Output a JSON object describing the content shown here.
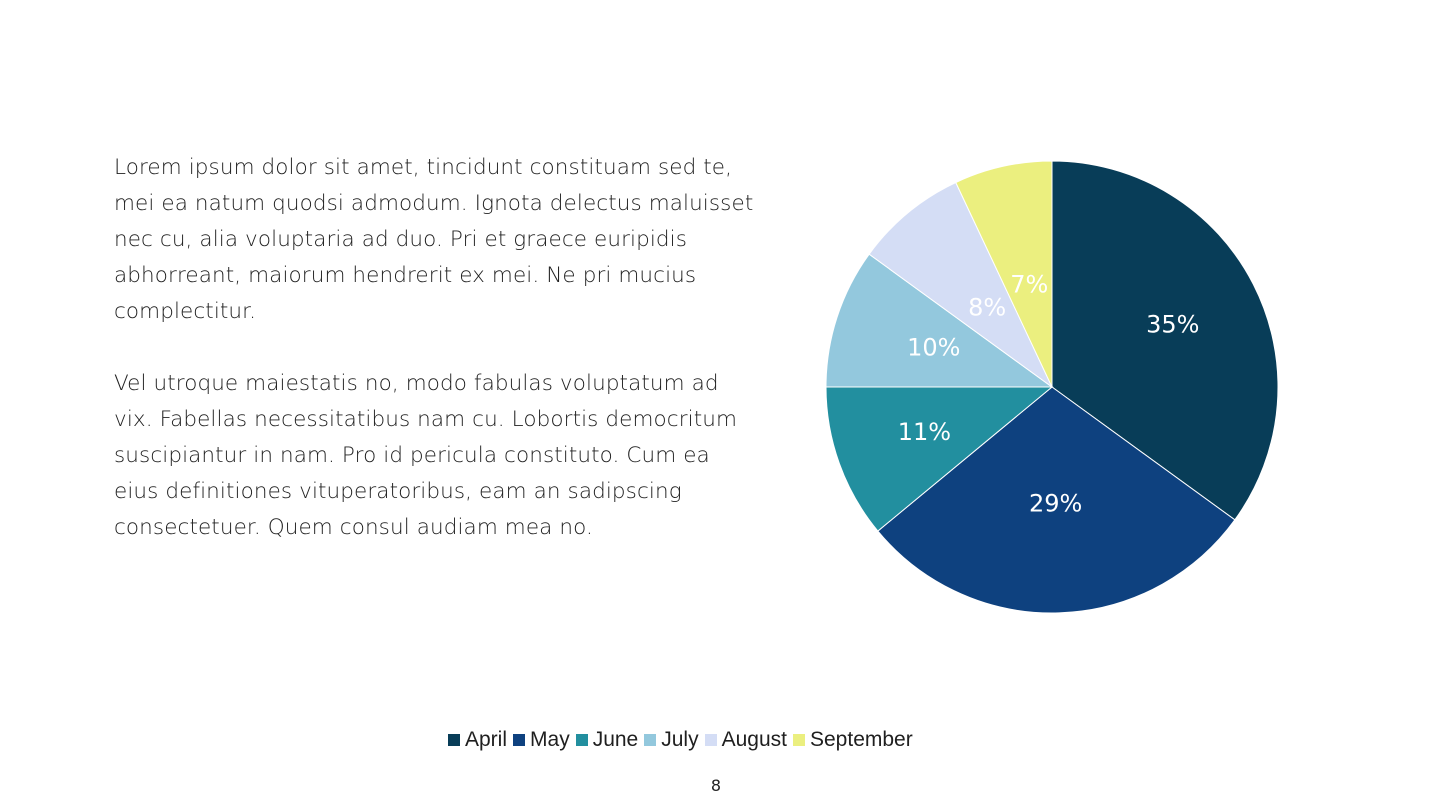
{
  "body_text": {
    "paragraph_1": "Lorem ipsum dolor sit amet, tincidunt constituam sed te, mei ea natum quodsi admodum. Ignota delectus maluisset nec cu, alia voluptaria ad duo. Pri et graece euripidis abhorreant, maiorum hendrerit ex mei. Ne pri mucius complectitur.",
    "paragraph_2": "Vel utroque maiestatis no, modo fabulas voluptatum ad vix. Fabellas necessitatibus nam cu. Lobortis democritum suscipiantur in nam. Pro id pericula constituto. Cum ea eius definitiones vituperatoribus, eam an sadipscing consectetuer. Quem consul audiam mea no."
  },
  "chart_data": {
    "type": "pie",
    "categories": [
      "April",
      "May",
      "June",
      "July",
      "August",
      "September"
    ],
    "values": [
      35,
      29,
      11,
      10,
      8,
      7
    ],
    "labels": [
      "35%",
      "29%",
      "11%",
      "10%",
      "8%",
      "7%"
    ],
    "colors": [
      "#083d58",
      "#0e417f",
      "#228f9f",
      "#93c8dd",
      "#d4ddf5",
      "#ebef7f"
    ],
    "label_colors": [
      "#ffffff",
      "#ffffff",
      "#ffffff",
      "#ffffff",
      "#ffffff",
      "#ffffff"
    ],
    "start": "12 o'clock",
    "direction": "clockwise",
    "legend_position": "bottom"
  },
  "legend": {
    "items": [
      {
        "label": "April",
        "color": "#083d58"
      },
      {
        "label": "May",
        "color": "#0e417f"
      },
      {
        "label": "June",
        "color": "#228f9f"
      },
      {
        "label": "July",
        "color": "#93c8dd"
      },
      {
        "label": "August",
        "color": "#d4ddf5"
      },
      {
        "label": "September",
        "color": "#ebef7f"
      }
    ]
  },
  "footer": {
    "page_number": "8"
  }
}
